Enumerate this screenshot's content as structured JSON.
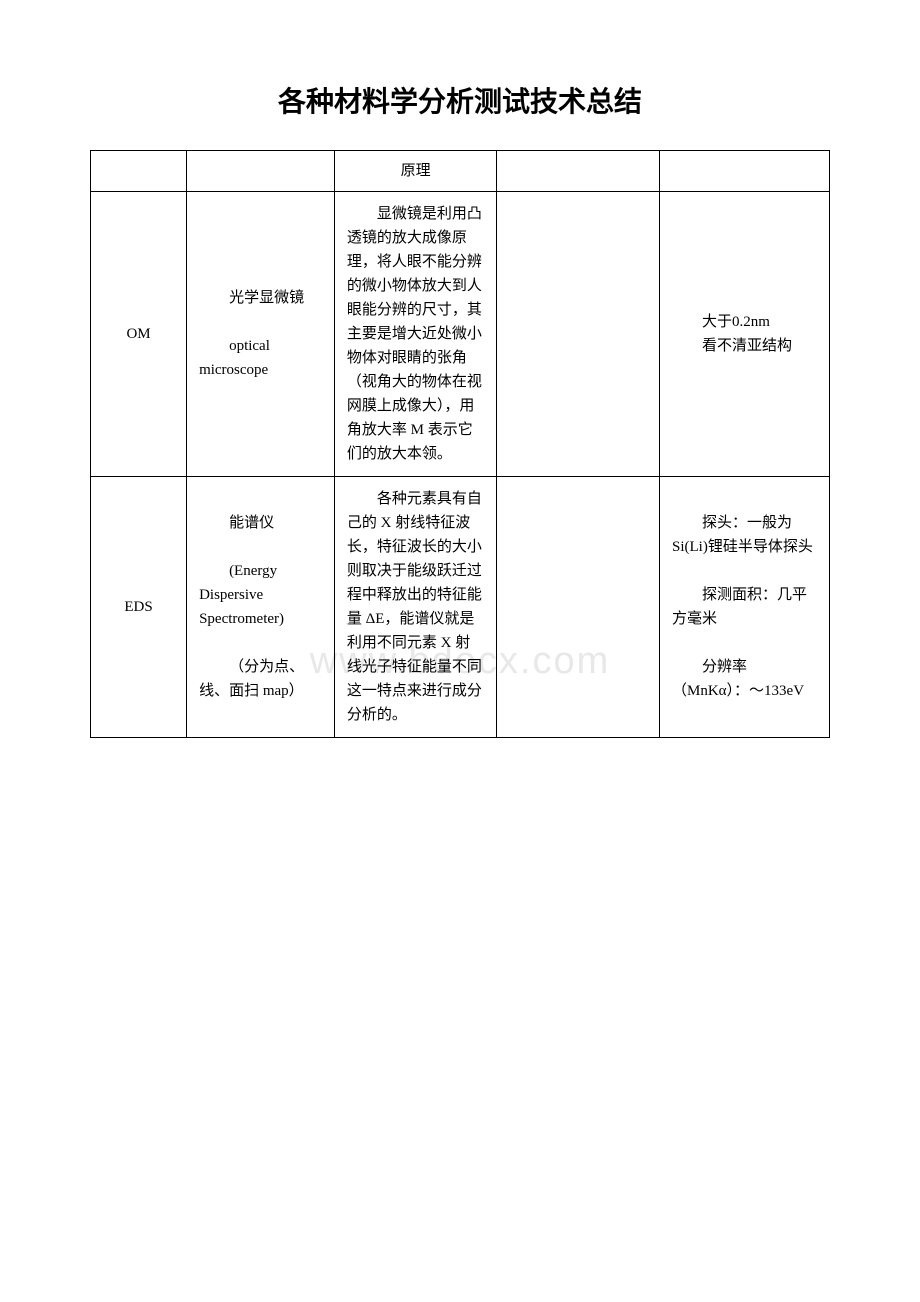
{
  "document": {
    "title": "各种材料学分析测试技术总结",
    "watermark": "www.bdocx.com",
    "title_fontsize": 28,
    "body_fontsize": 15,
    "text_color": "#000000",
    "background_color": "#ffffff",
    "border_color": "#000000",
    "watermark_color": "#e8e8e8"
  },
  "table": {
    "type": "table",
    "columns": [
      {
        "width_pct": 13
      },
      {
        "width_pct": 20
      },
      {
        "width_pct": 22
      },
      {
        "width_pct": 22
      },
      {
        "width_pct": 23
      }
    ],
    "header": {
      "col1": "",
      "col2": "",
      "col3": "原理",
      "col4": "",
      "col5": ""
    },
    "rows": [
      {
        "col1": "OM",
        "col2_line1": "光学显微镜",
        "col2_line2": "optical microscope",
        "col3": "显微镜是利用凸透镜的放大成像原理，将人眼不能分辨的微小物体放大到人眼能分辨的尺寸，其主要是增大近处微小物体对眼睛的张角（视角大的物体在视网膜上成像大），用角放大率 M 表示它们的放大本领。",
        "col4": "",
        "col5_line1": "大于0.2nm",
        "col5_line2": "看不清亚结构"
      },
      {
        "col1": "EDS",
        "col2_line1": "能谱仪",
        "col2_line2": "(Energy Dispersive Spectrometer)",
        "col2_line3": "（分为点、线、面扫 map）",
        "col3": "各种元素具有自己的 X 射线特征波长，特征波长的大小则取决于能级跃迁过程中释放出的特征能量 ΔE，能谱仪就是利用不同元素 X 射线光子特征能量不同这一特点来进行成分分析的。",
        "col4": "",
        "col5_line1": "探头：一般为 Si(Li)锂硅半导体探头",
        "col5_line2": "探测面积：几平方毫米",
        "col5_line3": "分辨率（MnKα）：～133eV"
      }
    ]
  }
}
